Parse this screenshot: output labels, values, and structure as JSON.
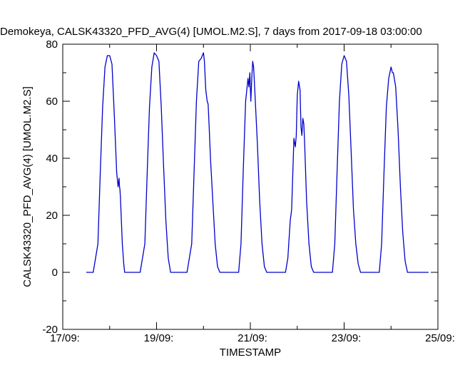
{
  "chart_data": {
    "type": "line",
    "title": "Demokeya, CALSK43320_PFD_AVG(4)  [UMOL.M2.S], 7 days from  2017-09-18 03:00:00",
    "xlabel": "TIMESTAMP",
    "ylabel": "CALSK43320_PFD_AVG(4) [UMOL.M2.S]",
    "ylim": [
      -20,
      80
    ],
    "xlim_days": [
      17,
      25
    ],
    "y_ticks": [
      "-20",
      "0",
      "20",
      "40",
      "60",
      "80"
    ],
    "x_ticks": [
      {
        "day": 17,
        "label": "17/09:"
      },
      {
        "day": 19,
        "label": "19/09:"
      },
      {
        "day": 21,
        "label": "21/09:"
      },
      {
        "day": 23,
        "label": "23/09:"
      },
      {
        "day": 25,
        "label": "25/09:"
      }
    ],
    "grid": false,
    "line_color": "#0000cc",
    "series": [
      {
        "x_day": [
          17.5,
          17.65,
          17.75,
          17.8,
          17.85,
          17.9,
          17.95,
          17.97,
          18.0,
          18.05,
          18.1,
          18.15,
          18.18,
          18.2,
          18.21,
          18.22,
          18.23,
          18.25,
          18.27,
          18.3,
          18.32,
          18.35,
          18.4,
          18.5,
          18.65,
          18.75,
          18.8,
          18.85,
          18.9,
          18.95,
          19.0,
          19.05,
          19.1,
          19.15,
          19.2,
          19.25,
          19.3,
          19.35,
          19.4,
          19.5,
          19.65,
          19.75,
          19.8,
          19.85,
          19.9,
          19.95,
          20.0,
          20.02,
          20.05,
          20.08,
          20.1,
          20.12,
          20.15,
          20.2,
          20.25,
          20.3,
          20.35,
          20.4,
          20.5,
          20.65,
          20.75,
          20.8,
          20.85,
          20.9,
          20.95,
          20.97,
          20.99,
          21.01,
          21.03,
          21.05,
          21.07,
          21.1,
          21.15,
          21.2,
          21.25,
          21.3,
          21.35,
          21.4,
          21.5,
          21.75,
          21.8,
          21.85,
          21.88,
          21.9,
          21.93,
          21.96,
          21.98,
          22.0,
          22.03,
          22.06,
          22.08,
          22.1,
          22.12,
          22.14,
          22.16,
          22.2,
          22.25,
          22.3,
          22.35,
          22.4,
          22.5,
          22.65,
          22.75,
          22.8,
          22.85,
          22.9,
          22.95,
          23.0,
          23.05,
          23.1,
          23.15,
          23.2,
          23.25,
          23.3,
          23.35,
          23.4,
          23.5,
          23.65,
          23.75,
          23.8,
          23.85,
          23.9,
          23.95,
          24.0,
          24.03,
          24.05,
          24.08,
          24.1,
          24.15,
          24.2,
          24.25,
          24.3,
          24.35,
          24.4,
          24.5,
          24.65,
          24.75,
          24.8
        ],
        "y": [
          0,
          0,
          10,
          35,
          58,
          72,
          76,
          76,
          76,
          73,
          55,
          35,
          30,
          33,
          30,
          29,
          26,
          18,
          10,
          3,
          0,
          0,
          0,
          0,
          0,
          10,
          35,
          58,
          72,
          77,
          76,
          74,
          58,
          37,
          18,
          5,
          0,
          0,
          0,
          0,
          0,
          10,
          35,
          60,
          74,
          75,
          77,
          74,
          64,
          60,
          59,
          52,
          40,
          25,
          10,
          2,
          0,
          0,
          0,
          0,
          0,
          10,
          36,
          60,
          68,
          65,
          70,
          60,
          68,
          74,
          72,
          62,
          45,
          25,
          10,
          2,
          0,
          0,
          0,
          0,
          5,
          18,
          22,
          32,
          47,
          44,
          48,
          62,
          67,
          64,
          51,
          48,
          54,
          52,
          44,
          25,
          10,
          2,
          0,
          0,
          0,
          0,
          0,
          10,
          35,
          60,
          73,
          76,
          74,
          62,
          42,
          22,
          10,
          3,
          0,
          0,
          0,
          0,
          0,
          10,
          35,
          58,
          68,
          72,
          70,
          70,
          67,
          65,
          50,
          30,
          14,
          4,
          0,
          0,
          0,
          0,
          0,
          0
        ]
      }
    ]
  }
}
